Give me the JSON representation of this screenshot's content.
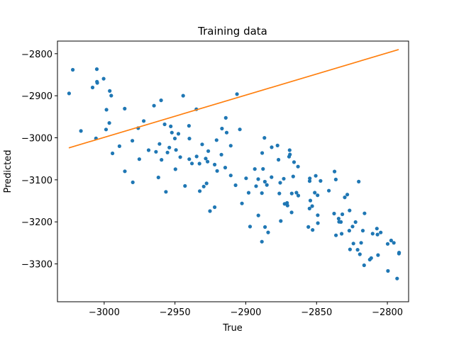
{
  "chart_data": {
    "type": "scatter",
    "title": "Training data",
    "xlabel": "True",
    "ylabel": "Predicted",
    "xlim": [
      -3033,
      -2785
    ],
    "ylim": [
      -3390,
      -2770
    ],
    "xticks": [
      -3000,
      -2950,
      -2900,
      -2850,
      -2800
    ],
    "yticks": [
      -3300,
      -3200,
      -3100,
      -3000,
      -2900,
      -2800
    ],
    "xtick_labels": [
      "−3000",
      "−2950",
      "−2900",
      "−2850",
      "−2800"
    ],
    "ytick_labels": [
      "−3300",
      "−3200",
      "−3100",
      "−3000",
      "−2900",
      "−2800"
    ],
    "grid": false,
    "legend": "none",
    "scatter_points": {
      "x": [
        -3022.2,
        -3005.1,
        -2985.5,
        -2989.2,
        -2959.8,
        -2998.4,
        -3008.2,
        -2996.4,
        -2963.4,
        -2979.8,
        -2976.0,
        -2957.3,
        -2998.7,
        -3024.8,
        -2961.7,
        -3016.4,
        -2972.1,
        -2950.1,
        -2964.8,
        -3005.2,
        -3004.9,
        -3000.4,
        -2994.1,
        -3005.8,
        -2940.1,
        -2956.4,
        -2975.2,
        -2939.8,
        -2944.2,
        -2949.7,
        -2968.6,
        -2996.1,
        -2952.2,
        -2927.7,
        -2916.8,
        -2954.0,
        -2995.0,
        -2913.5,
        -2985.4,
        -2980.1,
        -2906.2,
        -2922.0,
        -2934.9,
        -2942.9,
        -2955.3,
        -2914.5,
        -2960.9,
        -2928.3,
        -2910.6,
        -2953.0,
        -2927.0,
        -2930.8,
        -2925.3,
        -2934.7,
        -2949.3,
        -2917.2,
        -2907.2,
        -2946.3,
        -2899.8,
        -2959.5,
        -2929.7,
        -2910.6,
        -2886.8,
        -2939.9,
        -2938.0,
        -2868.8,
        -2887.8,
        -2897.0,
        -2914.1,
        -2932.5,
        -2932.7,
        -2877.6,
        -2876.3,
        -2947.6,
        -2891.2,
        -2904.2,
        -2876.9,
        -2922.0,
        -2920.6,
        -2888.4,
        -2866.5,
        -2862.9,
        -2902.7,
        -2869.0,
        -2892.7,
        -2886.5,
        -2926.5,
        -2869.4,
        -2851.3,
        -2847.2,
        -2875.7,
        -2893.6,
        -2881.8,
        -2920.2,
        -2885.1,
        -2898.0,
        -2888.6,
        -2870.5,
        -2855.0,
        -2881.7,
        -2854.4,
        -2884.2,
        -2873.2,
        -2891.1,
        -2841.3,
        -2849.3,
        -2888.6,
        -2863.1,
        -2870.8,
        -2865.9,
        -2826.7,
        -2872.6,
        -2886.4,
        -2832.8,
        -2854.8,
        -2849.2,
        -2828.3,
        -2817.3,
        -2875.3,
        -2853.1,
        -2837.3,
        -2867.6,
        -2855.8,
        -2836.4,
        -2852.8,
        -2867.5,
        -2826.9,
        -2854.9,
        -2830.1,
        -2820.2,
        -2836.3,
        -2832.3,
        -2850.6,
        -2849.1,
        -2864.2,
        -2822.5,
        -2834.4,
        -2831.8,
        -2797.3,
        -2795.4,
        -2816.4,
        -2826.4,
        -2816.1,
        -2799.6,
        -2791.8,
        -2837.6,
        -2807.0,
        -2834.1,
        -2824.0,
        -2811.4,
        -2804.7,
        -2819.4,
        -2821.0,
        -2824.6,
        -2807.4,
        -2791.7,
        -2812.4,
        -2818.5,
        -2810.4,
        -2793.1,
        -2806.6,
        -2799.8
      ],
      "y": [
        -2838.3,
        -2866.5,
        -2930.8,
        -3020.0,
        -2910.9,
        -2933.3,
        -2880.4,
        -2964.7,
        -3033.4,
        -3105.9,
        -2977.0,
        -2968.0,
        -2980.3,
        -2894.5,
        -3094.3,
        -2983.8,
        -2960.1,
        -3001.7,
        -2923.6,
        -2836.8,
        -2869.4,
        -2859.5,
        -3037.0,
        -3001.4,
        -2971.5,
        -3128.5,
        -3050.9,
        -3001.9,
        -2899.9,
        -3074.7,
        -3029.5,
        -2888.6,
        -2987.6,
        -3108.4,
        -2978.1,
        -3023.2,
        -2899.8,
        -2987.7,
        -3079.7,
        -3007.0,
        -2896.2,
        -3165.0,
        -2932.1,
        -3114.5,
        -3035.0,
        -3070.9,
        -3014.6,
        -3049.4,
        -3089.6,
        -2972.9,
        -3056.8,
        -3015.6,
        -3174.3,
        -3044.4,
        -3029.0,
        -3040.0,
        -3112.8,
        -3045.9,
        -3096.3,
        -3052.3,
        -3115.9,
        -3018.9,
        -3000.2,
        -3050.8,
        -3061.2,
        -3039.7,
        -3074.1,
        -3211.3,
        -2952.6,
        -3126.9,
        -3061.4,
        -3018.4,
        -3132.4,
        -2990.6,
        -3098.3,
        -2980.1,
        -3052.2,
        -3063.8,
        -3005.6,
        -3036.2,
        -3092.0,
        -3137.5,
        -3156.2,
        -3029.4,
        -3115.0,
        -3104.4,
        -3031.6,
        -3045.0,
        -3130.6,
        -3102.6,
        -3106.9,
        -3074.3,
        -3093.6,
        -3078.9,
        -3112.2,
        -3130.7,
        -3247.2,
        -3161.2,
        -3168.3,
        -3022.6,
        -3149.3,
        -3225.0,
        -3097.3,
        -3184.6,
        -3125.9,
        -3136.7,
        -3131.5,
        -3068.5,
        -3155.0,
        -3058.0,
        -3172.9,
        -3157.1,
        -3212.2,
        -3200.3,
        -3096.5,
        -3184.1,
        -3135.1,
        -3220.8,
        -3198.0,
        -3162.6,
        -3080.1,
        -3177.6,
        -3212.1,
        -3099.2,
        -3219.1,
        -3132.4,
        -3220.9,
        -3103.1,
        -3141.6,
        -3104.2,
        -3231.9,
        -3228.2,
        -3090.5,
        -3203.0,
        -3130.5,
        -3200.4,
        -3192.2,
        -3182.0,
        -3244.3,
        -3249.8,
        -3303.2,
        -3265.5,
        -3179.8,
        -3316.7,
        -3275.5,
        -3180.2,
        -3230.1,
        -3200.0,
        -3251.5,
        -3286.0,
        -3225.3,
        -3277.2,
        -3266.4,
        -3211.1,
        -3215.9,
        -3273.0,
        -3289.8,
        -3249.8,
        -3228.1,
        -3334.7,
        -3278.9,
        -3252.4
      ]
    },
    "fit_line": {
      "x": [
        -3025,
        -2792
      ],
      "y": [
        -3024,
        -2790
      ]
    },
    "colors": {
      "points": "#1f77b4",
      "line": "#ff7f0e",
      "axes": "#000000"
    }
  }
}
